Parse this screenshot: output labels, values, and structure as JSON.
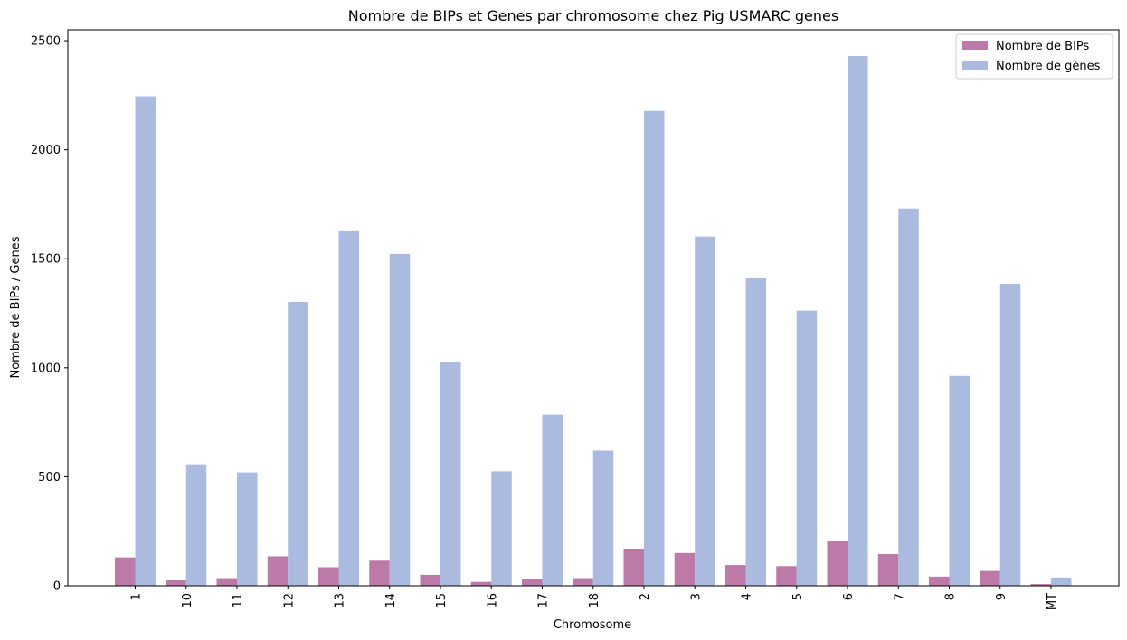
{
  "chart_data": {
    "type": "bar",
    "title": "Nombre de BIPs et Genes par chromosome chez Pig USMARC genes",
    "xlabel": "Chromosome",
    "ylabel": "Nombre de BIPs / Genes",
    "ylim": [
      0,
      2550
    ],
    "yticks": [
      0,
      500,
      1000,
      1500,
      2000,
      2500
    ],
    "grid": false,
    "legend_position": "top-right",
    "categories": [
      "1",
      "10",
      "11",
      "12",
      "13",
      "14",
      "15",
      "16",
      "17",
      "18",
      "2",
      "3",
      "4",
      "5",
      "6",
      "7",
      "8",
      "9",
      "MT"
    ],
    "series": [
      {
        "name": "Nombre de BIPs",
        "color": "#bc7aa8",
        "values": [
          130,
          25,
          35,
          135,
          85,
          115,
          50,
          18,
          30,
          35,
          170,
          150,
          95,
          90,
          205,
          145,
          42,
          68,
          8
        ]
      },
      {
        "name": "Nombre de gènes",
        "color": "#aabbdf",
        "values": [
          2245,
          557,
          520,
          1302,
          1630,
          1522,
          1028,
          525,
          785,
          620,
          2178,
          1602,
          1412,
          1262,
          2430,
          1730,
          963,
          1385,
          38
        ]
      }
    ]
  }
}
